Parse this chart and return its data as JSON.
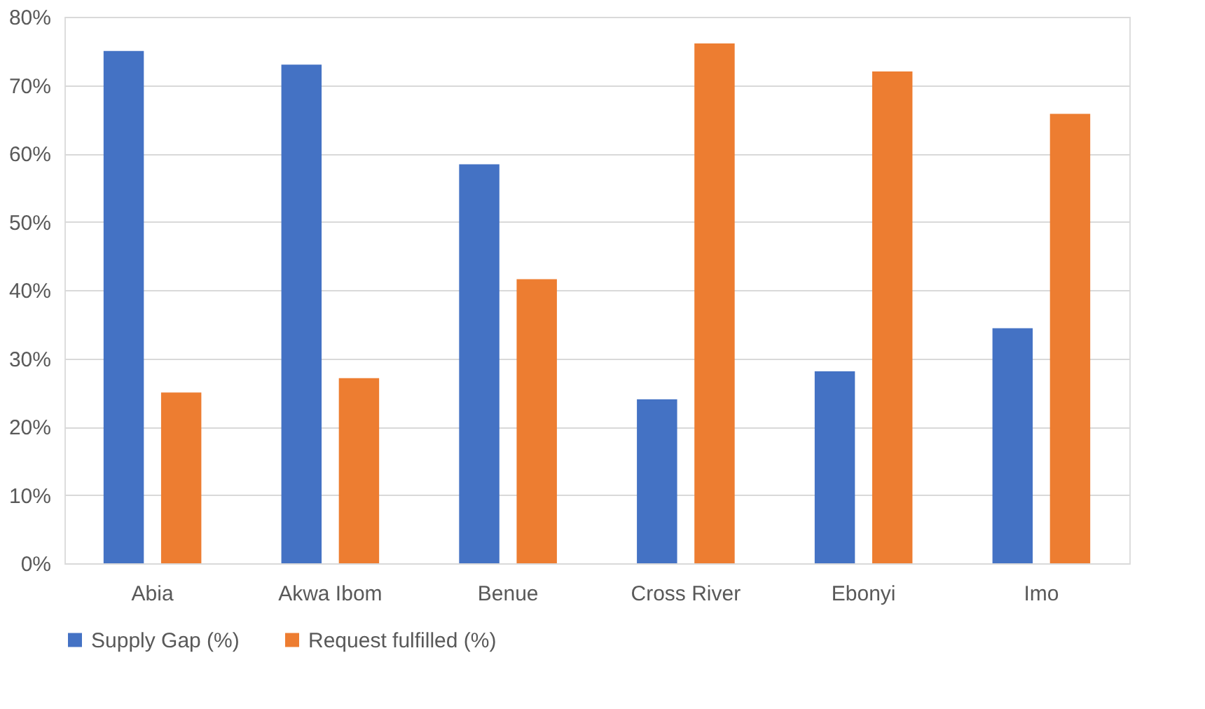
{
  "chart_data": {
    "type": "bar",
    "categories": [
      "Abia",
      "Akwa Ibom",
      "Benue",
      "Cross River",
      "Ebonyi",
      "Imo"
    ],
    "series": [
      {
        "name": "Supply Gap (%)",
        "color": "#4472c4",
        "values": [
          75,
          73,
          58.4,
          24,
          28.1,
          34.4
        ]
      },
      {
        "name": "Request fulfilled (%)",
        "color": "#ed7d31",
        "values": [
          25,
          27.1,
          41.6,
          76.1,
          72,
          65.8
        ]
      }
    ],
    "ylim": [
      0,
      80
    ],
    "yticks": [
      {
        "value": 0,
        "label": "0%"
      },
      {
        "value": 10,
        "label": "10%"
      },
      {
        "value": 20,
        "label": "20%"
      },
      {
        "value": 30,
        "label": "30%"
      },
      {
        "value": 40,
        "label": "40%"
      },
      {
        "value": 50,
        "label": "50%"
      },
      {
        "value": 60,
        "label": "60%"
      },
      {
        "value": 70,
        "label": "70%"
      },
      {
        "value": 80,
        "label": "80%"
      }
    ],
    "grid": "y",
    "legend": "bottom"
  }
}
